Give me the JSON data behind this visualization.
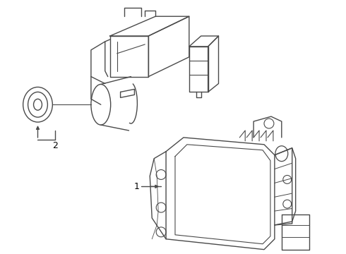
{
  "background_color": "#ffffff",
  "line_color": "#4a4a4a",
  "line_width": 1.0,
  "label_color": "#000000",
  "label_fontsize": 9,
  "figure_width": 4.9,
  "figure_height": 3.6,
  "dpi": 100
}
